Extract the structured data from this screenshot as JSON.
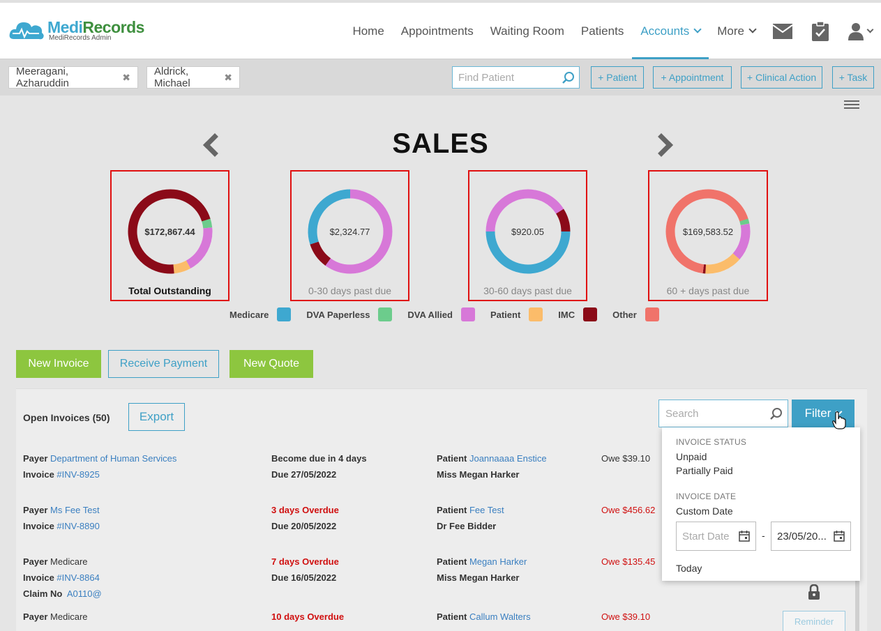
{
  "header": {
    "logo_title_a": "Medi",
    "logo_title_b": "Records",
    "logo_subtitle": "MediRecords Admin",
    "nav": {
      "home": "Home",
      "appointments": "Appointments",
      "waiting_room": "Waiting Room",
      "patients": "Patients",
      "accounts": "Accounts",
      "more": "More"
    },
    "icons": [
      "mail-icon",
      "clipboard-check-icon",
      "user-icon"
    ]
  },
  "patient_bar": {
    "tabs": [
      "Meeragani, Azharuddin",
      "Aldrick, Michael"
    ],
    "find_placeholder": "Find Patient",
    "buttons": [
      "+ Patient",
      "+ Appointment",
      "+ Clinical Action",
      "+ Task"
    ]
  },
  "sales": {
    "title": "SALES",
    "donuts": [
      {
        "value": "$172,867.44",
        "label": "Total Outstanding",
        "segments": [
          0.0,
          0.035,
          0.185,
          0.065,
          0.715,
          0.0
        ],
        "offset": 0.2
      },
      {
        "value": "$2,324.77",
        "label": "0-30 days past due",
        "segments": [
          0.3,
          0.0,
          0.6,
          0.0,
          0.1,
          0.0
        ],
        "offset": -0.3
      },
      {
        "value": "$920.05",
        "label": "30-60 days past due",
        "segments": [
          0.5,
          0.0,
          0.41,
          0.0,
          0.09,
          0.0
        ],
        "offset": -0.75
      },
      {
        "value": "$169,583.52",
        "label": "60 + days past due",
        "segments": [
          0.0,
          0.02,
          0.145,
          0.145,
          0.01,
          0.68
        ],
        "offset": 0.2
      }
    ],
    "legend": [
      {
        "name": "Medicare",
        "color": "#3ea8d0"
      },
      {
        "name": "DVA Paperless",
        "color": "#6ccc8c"
      },
      {
        "name": "DVA Allied",
        "color": "#d778d8"
      },
      {
        "name": "Patient",
        "color": "#fbbc6a"
      },
      {
        "name": "IMC",
        "color": "#8b0a18"
      },
      {
        "name": "Other",
        "color": "#f0736a"
      }
    ]
  },
  "actions": {
    "new_invoice": "New Invoice",
    "receive_payment": "Receive Payment",
    "new_quote": "New Quote"
  },
  "invoices": {
    "title": "Open Invoices (50)",
    "export": "Export",
    "search_placeholder": "Search",
    "filter": "Filter",
    "labels": {
      "payer": "Payer",
      "invoice": "Invoice",
      "patient": "Patient",
      "claim": "Claim No"
    },
    "rows": [
      {
        "payer": "Department of Human Services",
        "invoice": "#INV-8925",
        "status": "Become due in 4 days",
        "due": "Due 27/05/2022",
        "patient": "Joannaaaa Enstice",
        "doctor": "Miss Megan Harker",
        "owe": "Owe $39.10"
      },
      {
        "payer": "Ms Fee Test",
        "invoice": "#INV-8890",
        "status": "3 days Overdue",
        "due": "Due 20/05/2022",
        "patient": "Fee Test",
        "doctor": "Dr Fee Bidder",
        "owe": "Owe $456.62"
      },
      {
        "payer": "Medicare",
        "invoice": "#INV-8864",
        "status": "7 days Overdue",
        "due": "Due 16/05/2022",
        "patient": "Megan Harker",
        "doctor": "Miss Megan Harker",
        "owe": "Owe $135.45",
        "claim": "A0110@"
      },
      {
        "payer": "Medicare",
        "status": "10 days Overdue",
        "patient": "Callum Walters",
        "owe": "Owe $39.10"
      }
    ],
    "reminder": "Reminder"
  },
  "filter_dropdown": {
    "status_heading": "INVOICE STATUS",
    "status_options": [
      "Unpaid",
      "Partially Paid"
    ],
    "date_heading": "INVOICE DATE",
    "custom_date": "Custom Date",
    "start_placeholder": "Start Date",
    "end_value": "23/05/20...",
    "dash": "-",
    "today": "Today"
  }
}
